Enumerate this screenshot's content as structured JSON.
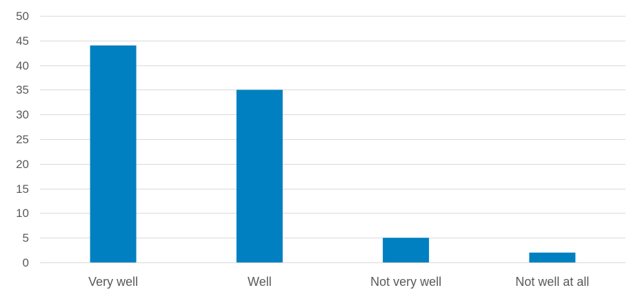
{
  "chart_data": {
    "type": "bar",
    "categories": [
      "Very well",
      "Well",
      "Not very well",
      "Not well at all"
    ],
    "values": [
      44,
      35,
      5,
      2
    ],
    "title": "",
    "xlabel": "",
    "ylabel": "",
    "ylim": [
      0,
      50
    ],
    "yticks": [
      0,
      5,
      10,
      15,
      20,
      25,
      30,
      35,
      40,
      45,
      50
    ],
    "grid": true,
    "legend": "none",
    "bar_color": "#0080c0",
    "grid_color": "#d9d9d9",
    "text_color": "#595959"
  }
}
